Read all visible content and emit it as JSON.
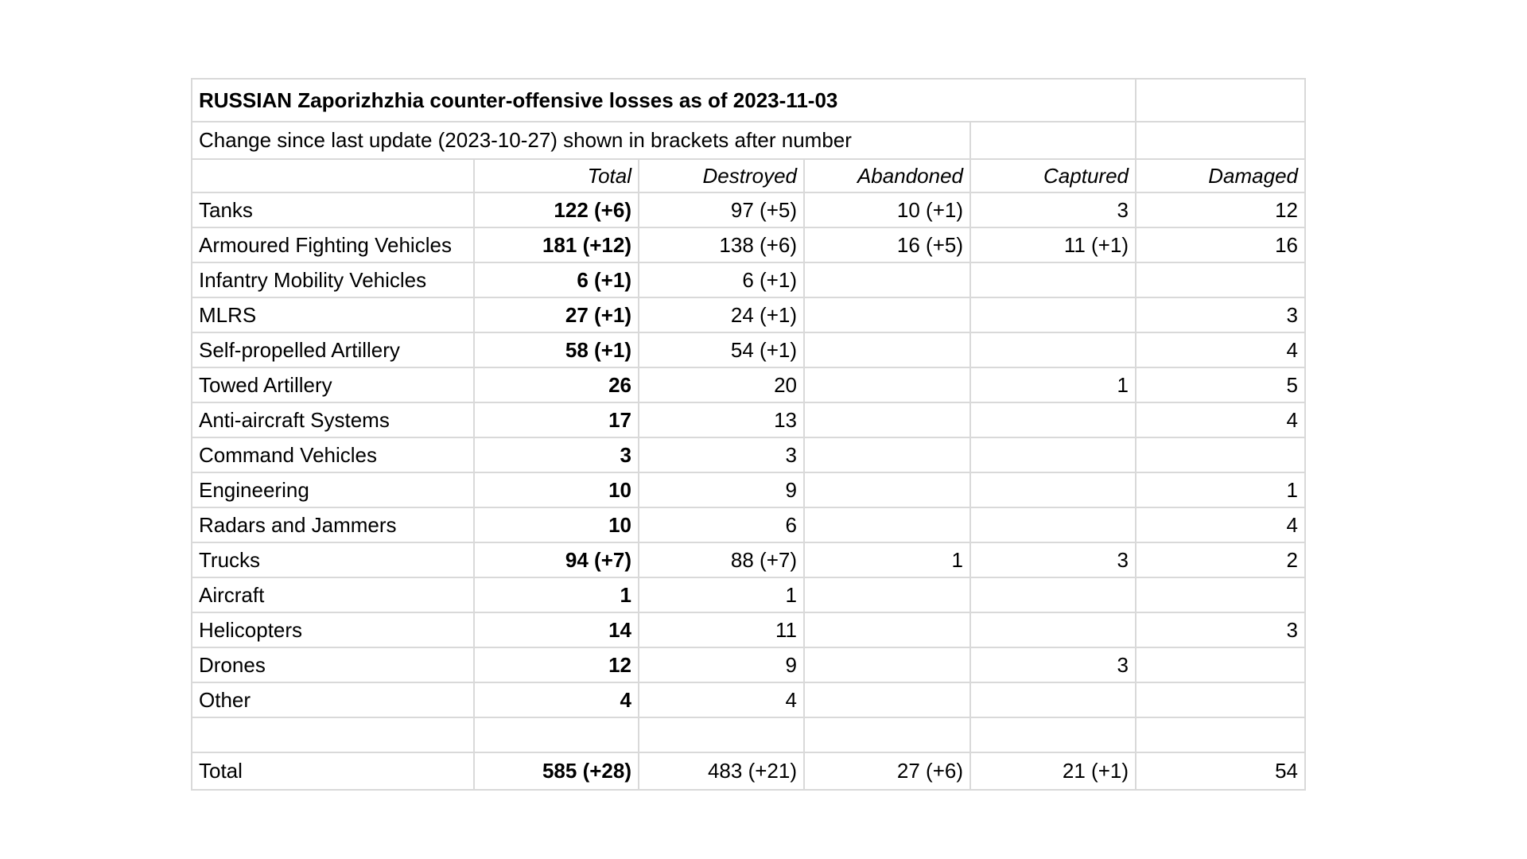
{
  "page": {
    "background_color": "#ffffff",
    "grid_color": "#d9d9d9",
    "text_color": "#000000"
  },
  "table": {
    "title": "RUSSIAN Zaporizhzhia counter-offensive losses as of 2023-11-03",
    "subtitle": "Change since last update (2023-10-27) shown in brackets after number",
    "column_headers": [
      "",
      "Total",
      "Destroyed",
      "Abandoned",
      "Captured",
      "Damaged"
    ],
    "rows": [
      [
        "Tanks",
        "122 (+6)",
        "97 (+5)",
        "10 (+1)",
        "3",
        "12"
      ],
      [
        "Armoured Fighting Vehicles",
        "181 (+12)",
        "138 (+6)",
        "16 (+5)",
        "11 (+1)",
        "16"
      ],
      [
        "Infantry Mobility Vehicles",
        "6 (+1)",
        "6 (+1)",
        "",
        "",
        ""
      ],
      [
        "MLRS",
        "27 (+1)",
        "24 (+1)",
        "",
        "",
        "3"
      ],
      [
        "Self-propelled Artillery",
        "58 (+1)",
        "54 (+1)",
        "",
        "",
        "4"
      ],
      [
        "Towed Artillery",
        "26",
        "20",
        "",
        "1",
        "5"
      ],
      [
        "Anti-aircraft Systems",
        "17",
        "13",
        "",
        "",
        "4"
      ],
      [
        "Command Vehicles",
        "3",
        "3",
        "",
        "",
        ""
      ],
      [
        "Engineering",
        "10",
        "9",
        "",
        "",
        "1"
      ],
      [
        "Radars and Jammers",
        "10",
        "6",
        "",
        "",
        "4"
      ],
      [
        "Trucks",
        "94 (+7)",
        "88 (+7)",
        "1",
        "3",
        "2"
      ],
      [
        "Aircraft",
        "1",
        "1",
        "",
        "",
        ""
      ],
      [
        "Helicopters",
        "14",
        "11",
        "",
        "",
        "3"
      ],
      [
        "Drones",
        "12",
        "9",
        "",
        "3",
        ""
      ],
      [
        "Other",
        "4",
        "4",
        "",
        "",
        ""
      ]
    ],
    "total_row": [
      "Total",
      "585 (+28)",
      "483 (+21)",
      "27 (+6)",
      "21 (+1)",
      "54"
    ]
  }
}
